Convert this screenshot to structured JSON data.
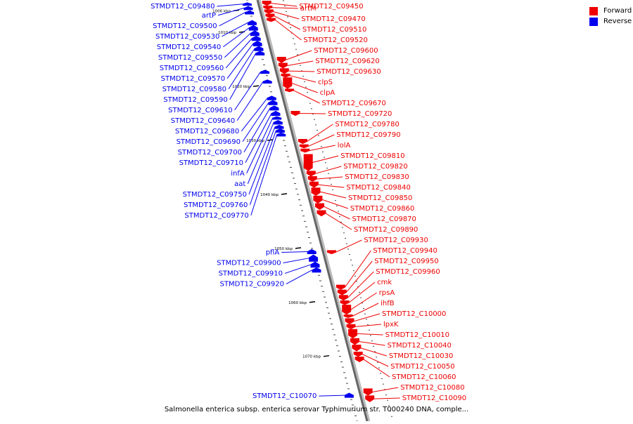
{
  "legend": {
    "forward_label": "Forward",
    "reverse_label": "Reverse",
    "forward_color": "#ee0000",
    "reverse_color": "#0000ee"
  },
  "caption": "Salmonella enterica subsp. enterica serovar Typhimurium str. T000240 DNA, comple...",
  "axis": {
    "start_kbp": 1004,
    "end_kbp": 1082,
    "ticks": [
      {
        "kbp": 1006,
        "label": "1006 kbp"
      },
      {
        "kbp": 1010,
        "label": "1010 kbp"
      },
      {
        "kbp": 1020,
        "label": "1020 kbp"
      },
      {
        "kbp": 1030,
        "label": "1030 kbp"
      },
      {
        "kbp": 1040,
        "label": "1040 kbp"
      },
      {
        "kbp": 1050,
        "label": "1050 kbp"
      },
      {
        "kbp": 1060,
        "label": "1060 kbp"
      },
      {
        "kbp": 1070,
        "label": "1070 kbp"
      }
    ]
  },
  "reverse_genes": [
    {
      "label": "STMDT12_C09480",
      "start": 1004.5,
      "end": 1005.0
    },
    {
      "label": "artP",
      "start": 1005.2,
      "end": 1005.8
    },
    {
      "label": "STMDT12_C09500",
      "start": 1006.0,
      "end": 1006.6
    },
    {
      "label": "STMDT12_C09530",
      "start": 1007.8,
      "end": 1008.6
    },
    {
      "label": "STMDT12_C09540",
      "start": 1008.7,
      "end": 1009.6
    },
    {
      "label": "STMDT12_C09550",
      "start": 1009.7,
      "end": 1010.6
    },
    {
      "label": "STMDT12_C09560",
      "start": 1010.7,
      "end": 1011.5
    },
    {
      "label": "STMDT12_C09570",
      "start": 1011.6,
      "end": 1012.5
    },
    {
      "label": "STMDT12_C09580",
      "start": 1012.6,
      "end": 1013.4
    },
    {
      "label": "STMDT12_C09590",
      "start": 1013.5,
      "end": 1014.2
    },
    {
      "label": "STMDT12_C09610",
      "start": 1017.0,
      "end": 1017.6
    },
    {
      "label": "STMDT12_C09640",
      "start": 1018.8,
      "end": 1019.4
    },
    {
      "label": "STMDT12_C09680",
      "start": 1021.8,
      "end": 1022.5
    },
    {
      "label": "STMDT12_C09690",
      "start": 1022.6,
      "end": 1023.4
    },
    {
      "label": "STMDT12_C09700",
      "start": 1023.6,
      "end": 1024.4
    },
    {
      "label": "STMDT12_C09710",
      "start": 1024.6,
      "end": 1025.4
    },
    {
      "label": "infA",
      "start": 1025.6,
      "end": 1026.1
    },
    {
      "label": "aat",
      "start": 1026.3,
      "end": 1027.0
    },
    {
      "label": "STMDT12_C09750",
      "start": 1027.2,
      "end": 1027.8
    },
    {
      "label": "STMDT12_C09760",
      "start": 1027.9,
      "end": 1028.5
    },
    {
      "label": "STMDT12_C09770",
      "start": 1028.6,
      "end": 1029.2
    },
    {
      "label": "pflA",
      "start": 1050.2,
      "end": 1051.0
    },
    {
      "label": "STMDT12_C09900",
      "start": 1051.2,
      "end": 1052.4
    },
    {
      "label": "STMDT12_C09910",
      "start": 1052.5,
      "end": 1053.5
    },
    {
      "label": "STMDT12_C09920",
      "start": 1053.6,
      "end": 1054.4
    },
    {
      "label": "STMDT12_C10070",
      "start": 1076.8,
      "end": 1077.6
    }
  ],
  "forward_genes": [
    {
      "label": "STMDT12_C09450",
      "start": 1004.2,
      "end": 1005.0
    },
    {
      "label": "artM",
      "start": 1005.1,
      "end": 1005.7
    },
    {
      "label": "STMDT12_C09470",
      "start": 1005.8,
      "end": 1006.5
    },
    {
      "label": "STMDT12_C09510",
      "start": 1006.6,
      "end": 1007.3
    },
    {
      "label": "STMDT12_C09520",
      "start": 1007.4,
      "end": 1008.0
    },
    {
      "label": "STMDT12_C09600",
      "start": 1014.6,
      "end": 1015.6
    },
    {
      "label": "STMDT12_C09620",
      "start": 1015.7,
      "end": 1016.6
    },
    {
      "label": "STMDT12_C09630",
      "start": 1016.7,
      "end": 1017.6
    },
    {
      "label": "clpS",
      "start": 1017.7,
      "end": 1018.3
    },
    {
      "label": "clpA",
      "start": 1018.4,
      "end": 1020.4
    },
    {
      "label": "STMDT12_C09670",
      "start": 1020.5,
      "end": 1021.0
    },
    {
      "label": "STMDT12_C09720",
      "start": 1024.6,
      "end": 1025.4
    },
    {
      "label": "STMDT12_C09780",
      "start": 1029.8,
      "end": 1030.6
    },
    {
      "label": "STMDT12_C09790",
      "start": 1030.8,
      "end": 1031.4
    },
    {
      "label": "lolA",
      "start": 1031.6,
      "end": 1032.2
    },
    {
      "label": "STMDT12_C09810",
      "start": 1032.6,
      "end": 1035.6
    },
    {
      "label": "STMDT12_C09820",
      "start": 1035.7,
      "end": 1036.6
    },
    {
      "label": "STMDT12_C09830",
      "start": 1036.7,
      "end": 1037.6
    },
    {
      "label": "STMDT12_C09840",
      "start": 1037.7,
      "end": 1038.7
    },
    {
      "label": "STMDT12_C09850",
      "start": 1038.8,
      "end": 1040.2
    },
    {
      "label": "STMDT12_C09860",
      "start": 1040.3,
      "end": 1041.6
    },
    {
      "label": "STMDT12_C09870",
      "start": 1041.7,
      "end": 1042.8
    },
    {
      "label": "STMDT12_C09890",
      "start": 1043.0,
      "end": 1044.0
    },
    {
      "label": "STMDT12_C09930",
      "start": 1050.4,
      "end": 1051.0
    },
    {
      "label": "STMDT12_C09940",
      "start": 1056.8,
      "end": 1057.6
    },
    {
      "label": "STMDT12_C09950",
      "start": 1057.7,
      "end": 1058.6
    },
    {
      "label": "STMDT12_C09960",
      "start": 1058.7,
      "end": 1059.6
    },
    {
      "label": "cmk",
      "start": 1059.7,
      "end": 1060.4
    },
    {
      "label": "rpsA",
      "start": 1060.5,
      "end": 1062.2
    },
    {
      "label": "ihfB",
      "start": 1062.3,
      "end": 1062.8
    },
    {
      "label": "STMDT12_C10000",
      "start": 1063.0,
      "end": 1064.0
    },
    {
      "label": "lpxK",
      "start": 1064.1,
      "end": 1064.9
    },
    {
      "label": "STMDT12_C10010",
      "start": 1065.0,
      "end": 1066.6
    },
    {
      "label": "STMDT12_C10040",
      "start": 1066.7,
      "end": 1067.8
    },
    {
      "label": "STMDT12_C10030",
      "start": 1067.9,
      "end": 1069.0
    },
    {
      "label": "STMDT12_C10050",
      "start": 1069.2,
      "end": 1070.0
    },
    {
      "label": "STMDT12_C10060",
      "start": 1070.1,
      "end": 1071.0
    },
    {
      "label": "STMDT12_C10080",
      "start": 1076.0,
      "end": 1077.2
    },
    {
      "label": "STMDT12_C10090",
      "start": 1077.3,
      "end": 1078.4
    }
  ]
}
